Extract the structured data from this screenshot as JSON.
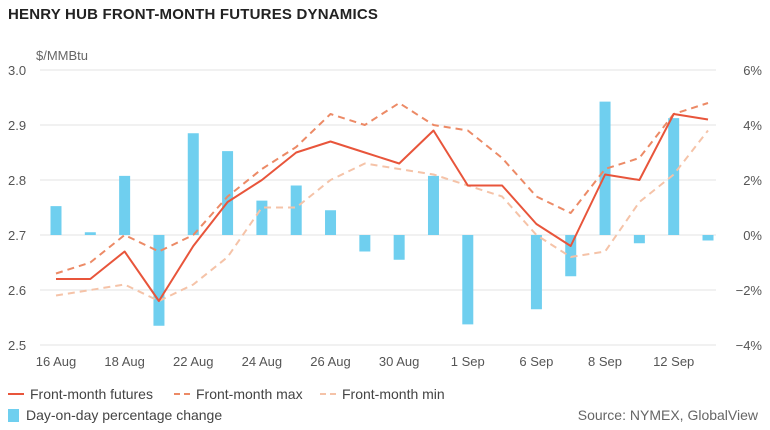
{
  "title": "HENRY HUB FRONT-MONTH FUTURES DYNAMICS",
  "source": "Source: NYMEX, GlobalView",
  "colors": {
    "futures": "#e8553b",
    "max": "#ec8a66",
    "min": "#f5c3a8",
    "bars": "#6fcfef",
    "grid": "#e3e3e3"
  },
  "chart_data": {
    "type": "line+bar",
    "y_left": {
      "unit_label": "$/MMBtu",
      "range": [
        2.5,
        3.0
      ],
      "ticks": [
        "2.5",
        "2.6",
        "2.7",
        "2.8",
        "2.9",
        "3.0"
      ]
    },
    "y_right": {
      "range": [
        -4,
        6
      ],
      "ticks": [
        "−4%",
        "−2%",
        "0%",
        "2%",
        "4%",
        "6%"
      ]
    },
    "x_ticks": [
      "16 Aug",
      "18 Aug",
      "22 Aug",
      "24 Aug",
      "26 Aug",
      "30 Aug",
      "1 Sep",
      "6 Sep",
      "8 Sep",
      "12 Sep"
    ],
    "x_tick_index": [
      0,
      2,
      4,
      6,
      8,
      10,
      12,
      14,
      16,
      18
    ],
    "n_points": 20,
    "grid": true,
    "series": [
      {
        "name": "Front-month futures",
        "axis": "left",
        "style": "solid",
        "values": [
          2.62,
          2.62,
          2.67,
          2.58,
          2.68,
          2.76,
          2.8,
          2.85,
          2.87,
          2.85,
          2.83,
          2.89,
          2.79,
          2.79,
          2.72,
          2.68,
          2.81,
          2.8,
          2.92,
          2.91
        ]
      },
      {
        "name": "Front-month max",
        "axis": "left",
        "style": "dashed",
        "values": [
          2.63,
          2.65,
          2.7,
          2.67,
          2.7,
          2.77,
          2.82,
          2.86,
          2.92,
          2.9,
          2.94,
          2.9,
          2.89,
          2.84,
          2.77,
          2.74,
          2.82,
          2.84,
          2.92,
          2.94
        ]
      },
      {
        "name": "Front-month min",
        "axis": "left",
        "style": "dashed",
        "values": [
          2.59,
          2.6,
          2.61,
          2.58,
          2.61,
          2.66,
          2.75,
          2.75,
          2.8,
          2.83,
          2.82,
          2.81,
          2.79,
          2.77,
          2.7,
          2.66,
          2.67,
          2.76,
          2.81,
          2.89
        ]
      },
      {
        "name": "Day-on-day percentage change",
        "axis": "right",
        "type": "bar",
        "values": [
          1.05,
          0.1,
          2.15,
          -3.3,
          3.7,
          3.05,
          1.25,
          1.8,
          0.9,
          -0.6,
          -0.9,
          2.15,
          -3.25,
          0.0,
          -2.7,
          -1.5,
          4.85,
          -0.3,
          4.25,
          -0.2
        ]
      }
    ]
  }
}
